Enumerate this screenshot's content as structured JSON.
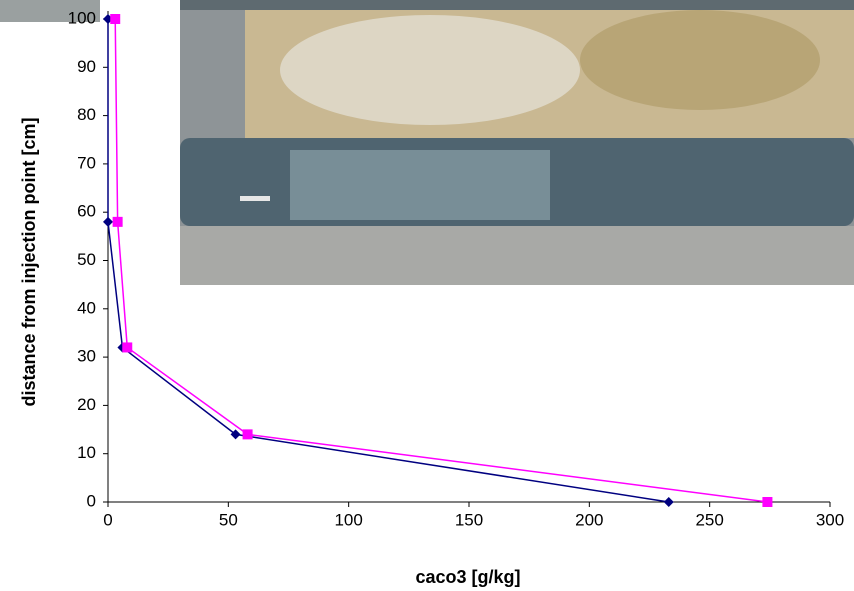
{
  "chart_data": {
    "type": "line",
    "x_label": "caco3 [g/kg]",
    "y_label": "distance from injection point [cm]",
    "series": [
      {
        "color": "#000080",
        "marker": "diamond",
        "x": [
          0,
          0,
          6,
          53,
          233
        ],
        "values": [
          100,
          58,
          32,
          14,
          0
        ]
      },
      {
        "color": "#ff00ff",
        "marker": "square",
        "x": [
          3,
          4,
          8,
          58,
          274
        ],
        "values": [
          100,
          58,
          32,
          14,
          0
        ]
      }
    ],
    "xlim": [
      0,
      300
    ],
    "xticks": [
      0,
      50,
      100,
      150,
      200,
      250,
      300
    ],
    "ylim": [
      0,
      100
    ],
    "yticks": [
      0,
      10,
      20,
      30,
      40,
      50,
      60,
      70,
      80,
      90,
      100
    ]
  }
}
